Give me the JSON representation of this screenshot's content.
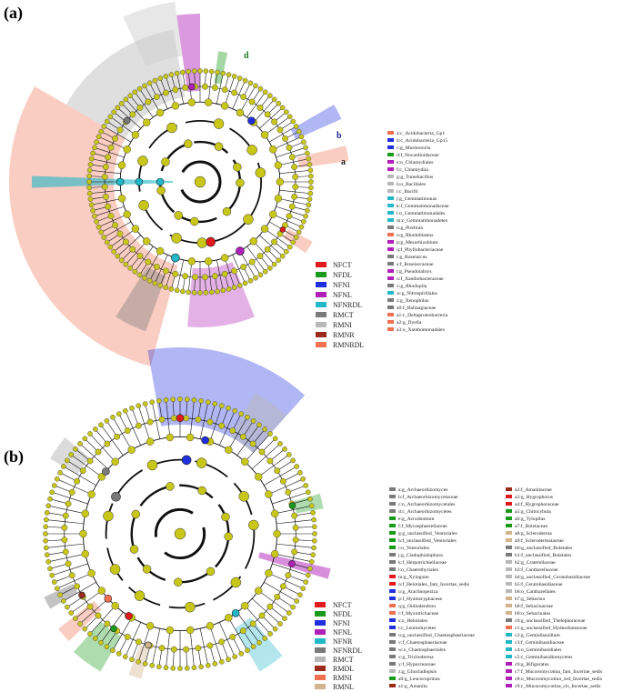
{
  "figure": {
    "panel_a": {
      "label": "(a)",
      "node_color": "#c8c619",
      "outer_labels": [
        {
          "text": "d",
          "color": "#1e7a1e"
        },
        {
          "text": "b",
          "color": "#1a1a8c"
        },
        {
          "text": "a",
          "color": "#222222"
        }
      ],
      "groups": [
        {
          "name": "NFCT",
          "color": "#e31a1c"
        },
        {
          "name": "NFDL",
          "color": "#1a9a1a"
        },
        {
          "name": "NFNI",
          "color": "#1f2fe0"
        },
        {
          "name": "NFNL",
          "color": "#b01fb8"
        },
        {
          "name": "NFNRDL",
          "color": "#22b8c8"
        },
        {
          "name": "RMCT",
          "color": "#7a7a7a"
        },
        {
          "name": "RMNI",
          "color": "#b8b8b8"
        },
        {
          "name": "RMNR",
          "color": "#9a2a1c"
        },
        {
          "name": "RMNRDL",
          "color": "#f07050"
        }
      ],
      "taxa": [
        {
          "text": "a:c_Acidobacteria_Gp1",
          "color": "#f07050"
        },
        {
          "text": "b:c_Acidobacteria_Gp15",
          "color": "#1f2fe0"
        },
        {
          "text": "c:g_Murmonicla",
          "color": "#1f2fe0"
        },
        {
          "text": "d:f_Nocardioidaceae",
          "color": "#1a9a1a"
        },
        {
          "text": "e:o_Chlamydiales",
          "color": "#b01fb8"
        },
        {
          "text": "f:c_Chlamydiia",
          "color": "#b01fb8"
        },
        {
          "text": "g:g_Tumebacillus",
          "color": "#b8b8b8"
        },
        {
          "text": "h:o_Bacillales",
          "color": "#b8b8b8"
        },
        {
          "text": "i:c_Bacilli",
          "color": "#b8b8b8"
        },
        {
          "text": "j:g_Gemmatimonas",
          "color": "#22b8c8"
        },
        {
          "text": "k:f_Gemmatimonadaceae",
          "color": "#22b8c8"
        },
        {
          "text": "l:o_Gemmatimonadales",
          "color": "#22b8c8"
        },
        {
          "text": "m:c_Gemmatimonadetes",
          "color": "#22b8c8"
        },
        {
          "text": "n:g_Pirellula",
          "color": "#7a7a7a"
        },
        {
          "text": "o:g_Rhodoblastus",
          "color": "#f07050"
        },
        {
          "text": "p:g_Mesorhizobium",
          "color": "#b01fb8"
        },
        {
          "text": "q:f_Phyllobacteriaceae",
          "color": "#b01fb8"
        },
        {
          "text": "r:g_Roseiarcus",
          "color": "#7a7a7a"
        },
        {
          "text": "s:f_Roseiarcaceae",
          "color": "#7a7a7a"
        },
        {
          "text": "t:g_Pseudolabrys",
          "color": "#b01fb8"
        },
        {
          "text": "u:f_Xanthobacteraceae",
          "color": "#b01fb8"
        },
        {
          "text": "v:g_Rhodopila",
          "color": "#7a7a7a"
        },
        {
          "text": "w:g_Nitrospirillales",
          "color": "#22b8c8"
        },
        {
          "text": "z:g_Xenophilus",
          "color": "#7a7a7a"
        },
        {
          "text": "a0:f_Haliangiaceae",
          "color": "#7a7a7a"
        },
        {
          "text": "a1:c_Deltaproteobacteria",
          "color": "#f07050"
        },
        {
          "text": "a2:g_Dyella",
          "color": "#f07050"
        },
        {
          "text": "a3:o_Xanthomonadales",
          "color": "#f07050"
        }
      ]
    },
    "panel_b": {
      "label": "(b)",
      "node_color": "#c8c619",
      "groups": [
        {
          "name": "NFCT",
          "color": "#e31a1c"
        },
        {
          "name": "NFDL",
          "color": "#1a9a1a"
        },
        {
          "name": "NFNI",
          "color": "#1f2fe0"
        },
        {
          "name": "NFNL",
          "color": "#b01fb8"
        },
        {
          "name": "NFNR",
          "color": "#22b8c8"
        },
        {
          "name": "NFNRDL",
          "color": "#7a7a7a"
        },
        {
          "name": "RMCT",
          "color": "#b8b8b8"
        },
        {
          "name": "RMDL",
          "color": "#9a2a1c"
        },
        {
          "name": "RMNI",
          "color": "#f07050"
        },
        {
          "name": "RMNL",
          "color": "#d2b48c"
        }
      ],
      "taxa_col1": [
        {
          "text": "a:g_Archaeorhizomyces",
          "color": "#7a7a7a"
        },
        {
          "text": "b:f_Archaeorhizomycetaceae",
          "color": "#7a7a7a"
        },
        {
          "text": "c:o_Archaeorhizomycetales",
          "color": "#7a7a7a"
        },
        {
          "text": "d:c_Archaeorhizomycetes",
          "color": "#7a7a7a"
        },
        {
          "text": "e:g_Acrodontium",
          "color": "#1a9a1a"
        },
        {
          "text": "f:f_Mycosphaerellaceae",
          "color": "#1a9a1a"
        },
        {
          "text": "g:g_unclassified_Venturiales",
          "color": "#1a9a1a"
        },
        {
          "text": "h:f_unclassified_Venturiales",
          "color": "#1a9a1a"
        },
        {
          "text": "i:o_Venturiales",
          "color": "#1a9a1a"
        },
        {
          "text": "j:g_Cladophialophora",
          "color": "#7a7a7a"
        },
        {
          "text": "k:f_Herpotrichiellaceae",
          "color": "#7a7a7a"
        },
        {
          "text": "l:o_Chaetothyriales",
          "color": "#7a7a7a"
        },
        {
          "text": "m:g_Xylogone",
          "color": "#e31a1c"
        },
        {
          "text": "n:f_Helotiales_fam_Incertae_sedis",
          "color": "#e31a1c"
        },
        {
          "text": "o:g_Arachnopeziza",
          "color": "#1f2fe0"
        },
        {
          "text": "p:f_Hyaloscyphaceae",
          "color": "#1f2fe0"
        },
        {
          "text": "q:g_Oidiodendron",
          "color": "#f07050"
        },
        {
          "text": "r:f_Myxotrichaceae",
          "color": "#f07050"
        },
        {
          "text": "s:o_Helotiales",
          "color": "#1f2fe0"
        },
        {
          "text": "t:c_Leotiomycetes",
          "color": "#1f2fe0"
        },
        {
          "text": "u:g_unclassified_Chaetosphaeriaceae",
          "color": "#7a7a7a"
        },
        {
          "text": "v:f_Chaetosphaeriaceae",
          "color": "#7a7a7a"
        },
        {
          "text": "w:o_Chaetosphaeriales",
          "color": "#7a7a7a"
        },
        {
          "text": "x:g_Trichoderma",
          "color": "#7a7a7a"
        },
        {
          "text": "y:f_Hypocreaceae",
          "color": "#7a7a7a"
        },
        {
          "text": "z:g_Gliocladiopsis",
          "color": "#b8b8b8"
        },
        {
          "text": "a0:g_Leucocoprinus",
          "color": "#1a9a1a"
        },
        {
          "text": "a1:g_Amanita",
          "color": "#9a2a1c"
        }
      ],
      "taxa_col2": [
        {
          "text": "a2:f_Amanitaceae",
          "color": "#9a2a1c"
        },
        {
          "text": "a3:g_Hygrophorus",
          "color": "#e31a1c"
        },
        {
          "text": "a4:f_Hygrophoraceae",
          "color": "#e31a1c"
        },
        {
          "text": "a5:g_Chitocybula",
          "color": "#1a9a1a"
        },
        {
          "text": "a6:g_Tylopilus",
          "color": "#1a9a1a"
        },
        {
          "text": "a7:f_Boletaceae",
          "color": "#1a9a1a"
        },
        {
          "text": "a8:g_Scleroderma",
          "color": "#d2b48c"
        },
        {
          "text": "a9:f_Sclerodermataceae",
          "color": "#d2b48c"
        },
        {
          "text": "b0:g_unclassified_Boletales",
          "color": "#7a7a7a"
        },
        {
          "text": "b1:f_unclassified_Boletales",
          "color": "#7a7a7a"
        },
        {
          "text": "b2:g_Craterellaceae",
          "color": "#b8b8b8"
        },
        {
          "text": "b3:f_Cantharellaceae",
          "color": "#b8b8b8"
        },
        {
          "text": "b4:g_unclassified_Ceratobasidiaceae",
          "color": "#b8b8b8"
        },
        {
          "text": "b5:f_Ceratobasidiaceae",
          "color": "#b8b8b8"
        },
        {
          "text": "b6:o_Cantharellales",
          "color": "#b8b8b8"
        },
        {
          "text": "b7:g_Sebacina",
          "color": "#d2b48c"
        },
        {
          "text": "b8:f_Sebacinaceae",
          "color": "#d2b48c"
        },
        {
          "text": "b9:o_Sebacinales",
          "color": "#d2b48c"
        },
        {
          "text": "c0:g_unclassified_Thelephoraceae",
          "color": "#7a7a7a"
        },
        {
          "text": "c1:g_unclassified_Hydnodontaceae",
          "color": "#f07050"
        },
        {
          "text": "c2:g_Geminibasidium",
          "color": "#22b8c8"
        },
        {
          "text": "c3:f_Geminibasidiaceae",
          "color": "#22b8c8"
        },
        {
          "text": "c4:o_Geminibasidiales",
          "color": "#22b8c8"
        },
        {
          "text": "c5:c_Geminibasidiomycetes",
          "color": "#22b8c8"
        },
        {
          "text": "c6:g_Bifiguratus",
          "color": "#b01fb8"
        },
        {
          "text": "c7:f_Mucoromycotina_fam_Incertae_sedis",
          "color": "#b01fb8"
        },
        {
          "text": "c8:o_Mucoromycotina_ord_Incertae_sedis",
          "color": "#b01fb8"
        },
        {
          "text": "c9:c_Mucoromycotina_cls_Incertae_sedis",
          "color": "#b01fb8"
        }
      ]
    }
  }
}
